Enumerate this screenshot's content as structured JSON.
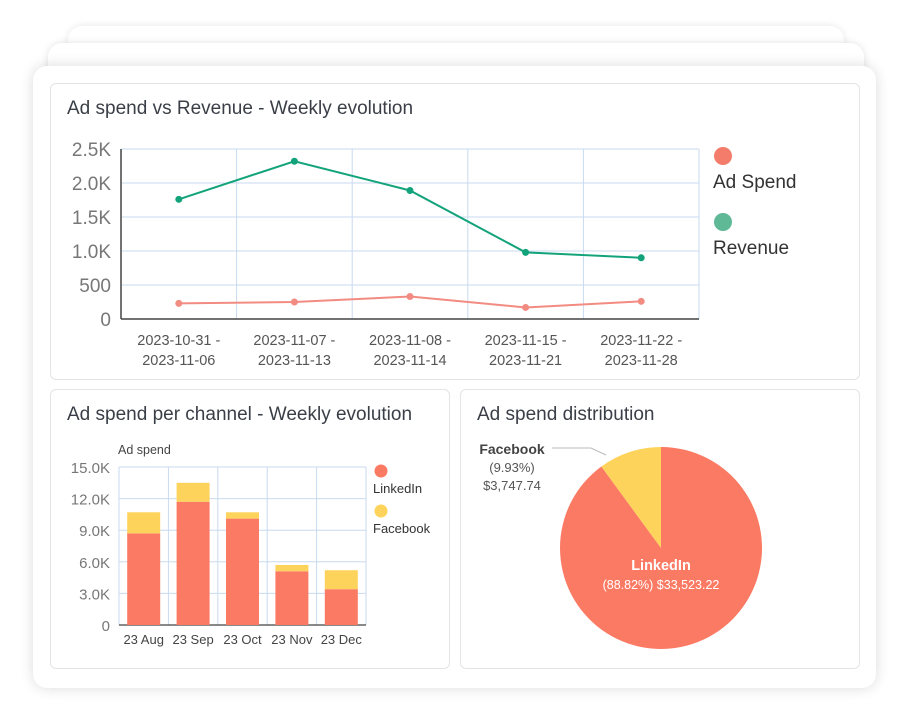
{
  "colors": {
    "ad_spend": "#f28b82",
    "revenue": "#12a37a",
    "linkedin": "#fb7a64",
    "facebook": "#fdd35b",
    "grid": "#c9daf0",
    "axis": "#444444"
  },
  "chart_data": [
    {
      "type": "line",
      "title": "Ad spend vs Revenue - Weekly evolution",
      "x": [
        [
          "2023-10-31 -",
          "2023-11-06"
        ],
        [
          "2023-11-07 -",
          "2023-11-13"
        ],
        [
          "2023-11-08 -",
          "2023-11-14"
        ],
        [
          "2023-11-15 -",
          "2023-11-21"
        ],
        [
          "2023-11-22 -",
          "2023-11-28"
        ]
      ],
      "yticks": [
        "0",
        "500",
        "1.0K",
        "1.5K",
        "2.0K",
        "2.5K"
      ],
      "ylim": [
        0,
        2500
      ],
      "series": [
        {
          "name": "Ad Spend",
          "values": [
            230,
            250,
            330,
            170,
            260
          ]
        },
        {
          "name": "Revenue",
          "values": [
            1760,
            2320,
            1890,
            980,
            900
          ]
        }
      ],
      "legend": "right",
      "grid": true
    },
    {
      "type": "bar",
      "stacked": true,
      "title": "Ad spend per channel - Weekly evolution",
      "ylabel": "Ad spend",
      "categories": [
        "23 Aug",
        "23 Sep",
        "23 Oct",
        "23 Nov",
        "23 Dec"
      ],
      "yticks": [
        "0",
        "3.0K",
        "6.0K",
        "9.0K",
        "12.0K",
        "15.0K"
      ],
      "ylim": [
        0,
        15000
      ],
      "series": [
        {
          "name": "LinkedIn",
          "values": [
            8700,
            11700,
            10100,
            5100,
            3400
          ]
        },
        {
          "name": "Facebook",
          "values": [
            2000,
            1800,
            600,
            600,
            1800
          ]
        }
      ],
      "legend": "right",
      "grid": true
    },
    {
      "type": "pie",
      "title": "Ad spend distribution",
      "slices": [
        {
          "name": "LinkedIn",
          "value": 33523.22,
          "pct_label": "(88.82%)",
          "value_label": "$33,523.22"
        },
        {
          "name": "Facebook",
          "value": 3747.74,
          "pct_label": "(9.93%)",
          "value_label": "$3,747.74"
        }
      ]
    }
  ]
}
